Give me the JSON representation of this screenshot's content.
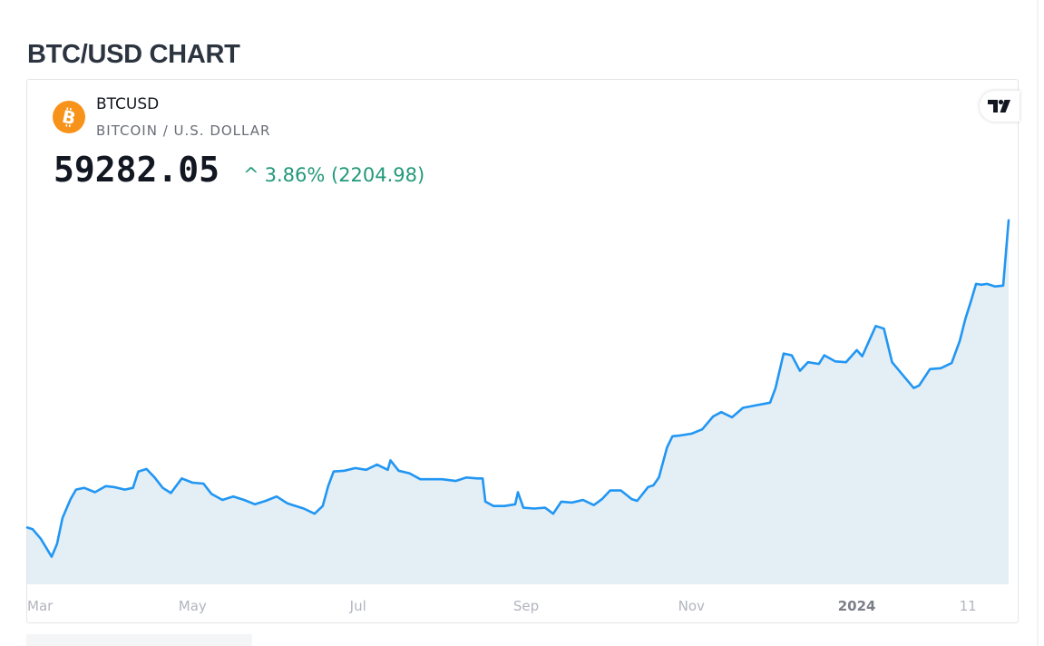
{
  "page": {
    "title": "BTC/USD CHART"
  },
  "widget": {
    "symbol": "BTCUSD",
    "description": "BITCOIN / U.S. DOLLAR",
    "price": "59282.05",
    "change_arrow": "^",
    "change_text": "3.86% (2204.98)",
    "logo_icon": "bitcoin-icon",
    "brand_icon": "tradingview-icon"
  },
  "colors": {
    "line": "#2196f3",
    "area": "#e4eef5",
    "positive": "#22997a",
    "coin": "#f7931a",
    "axis_text": "#b2b5be"
  },
  "chart_data": {
    "type": "area",
    "title": "",
    "xlabel": "",
    "ylabel": "",
    "x_tick_labels": [
      {
        "label": "Mar",
        "date": "2023-03-01"
      },
      {
        "label": "May",
        "date": "2023-05-01"
      },
      {
        "label": "Jul",
        "date": "2023-07-01"
      },
      {
        "label": "Sep",
        "date": "2023-09-01"
      },
      {
        "label": "Nov",
        "date": "2023-11-01"
      },
      {
        "label": "2024",
        "date": "2024-01-01"
      },
      {
        "label": "11",
        "date": "2024-02-11"
      }
    ],
    "xlim": [
      "2023-03-01",
      "2024-02-26"
    ],
    "ylim": [
      17000,
      60000
    ],
    "series": [
      {
        "x": [
          "2023-03-01",
          "2023-03-03",
          "2023-03-06",
          "2023-03-10",
          "2023-03-12",
          "2023-03-14",
          "2023-03-17",
          "2023-03-19",
          "2023-03-22",
          "2023-03-26",
          "2023-03-30",
          "2023-04-02",
          "2023-04-06",
          "2023-04-09",
          "2023-04-11",
          "2023-04-14",
          "2023-04-17",
          "2023-04-20",
          "2023-04-23",
          "2023-04-27",
          "2023-05-01",
          "2023-05-05",
          "2023-05-08",
          "2023-05-12",
          "2023-05-16",
          "2023-05-20",
          "2023-05-24",
          "2023-05-28",
          "2023-06-01",
          "2023-06-05",
          "2023-06-07",
          "2023-06-11",
          "2023-06-15",
          "2023-06-18",
          "2023-06-20",
          "2023-06-22",
          "2023-06-26",
          "2023-06-30",
          "2023-07-04",
          "2023-07-08",
          "2023-07-12",
          "2023-07-13",
          "2023-07-16",
          "2023-07-20",
          "2023-07-24",
          "2023-07-28",
          "2023-08-01",
          "2023-08-06",
          "2023-08-10",
          "2023-08-14",
          "2023-08-16",
          "2023-08-17",
          "2023-08-20",
          "2023-08-24",
          "2023-08-28",
          "2023-08-29",
          "2023-08-31",
          "2023-09-04",
          "2023-09-08",
          "2023-09-11",
          "2023-09-14",
          "2023-09-18",
          "2023-09-22",
          "2023-09-26",
          "2023-09-29",
          "2023-10-02",
          "2023-10-06",
          "2023-10-10",
          "2023-10-12",
          "2023-10-16",
          "2023-10-18",
          "2023-10-20",
          "2023-10-23",
          "2023-10-25",
          "2023-10-28",
          "2023-11-01",
          "2023-11-05",
          "2023-11-09",
          "2023-11-12",
          "2023-11-16",
          "2023-11-20",
          "2023-11-25",
          "2023-11-30",
          "2023-12-02",
          "2023-12-05",
          "2023-12-08",
          "2023-12-11",
          "2023-12-14",
          "2023-12-18",
          "2023-12-20",
          "2023-12-24",
          "2023-12-28",
          "2024-01-01",
          "2024-01-03",
          "2024-01-08",
          "2024-01-11",
          "2024-01-14",
          "2024-01-18",
          "2024-01-22",
          "2024-01-24",
          "2024-01-28",
          "2024-02-01",
          "2024-02-05",
          "2024-02-08",
          "2024-02-10",
          "2024-02-12",
          "2024-02-14",
          "2024-02-16",
          "2024-02-18",
          "2024-02-21",
          "2024-02-24",
          "2024-02-26"
        ],
        "y": [
          23600,
          23400,
          22300,
          20200,
          21700,
          24700,
          26900,
          28000,
          28200,
          27700,
          28400,
          28300,
          28000,
          28200,
          30100,
          30400,
          29400,
          28200,
          27600,
          29300,
          28800,
          28700,
          27500,
          26800,
          27200,
          26800,
          26300,
          26700,
          27200,
          26400,
          26200,
          25800,
          25200,
          26100,
          28400,
          30100,
          30200,
          30500,
          30300,
          30900,
          30300,
          31400,
          30200,
          29900,
          29200,
          29200,
          29200,
          29000,
          29400,
          29300,
          29300,
          26600,
          26100,
          26100,
          26300,
          27700,
          25900,
          25800,
          25900,
          25200,
          26600,
          26500,
          26800,
          26200,
          26900,
          27900,
          27900,
          26900,
          26700,
          28300,
          28500,
          29400,
          32900,
          34200,
          34300,
          34500,
          35000,
          36500,
          37000,
          36400,
          37500,
          37800,
          38100,
          39800,
          43800,
          43600,
          41800,
          42800,
          42600,
          43600,
          42900,
          42800,
          44200,
          43500,
          47000,
          46700,
          42800,
          41300,
          39800,
          40100,
          42000,
          42100,
          42700,
          45300,
          47800,
          49800,
          51900,
          51800,
          51900,
          51600,
          51700,
          59282
        ]
      }
    ]
  }
}
